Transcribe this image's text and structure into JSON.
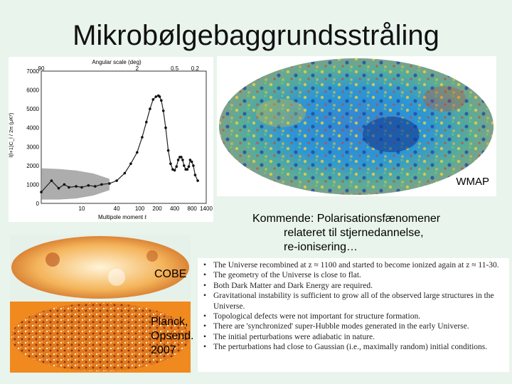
{
  "slide": {
    "title": "Mikrobølgebaggrundsstråling",
    "wmap_label": "WMAP",
    "upcoming_line1": "Kommende: Polarisationsfænomener",
    "upcoming_line2": "relateret til stjernedannelse,",
    "upcoming_line3": "re-ionisering…",
    "cobe_label": "COBE",
    "planck_line1": "Planck,",
    "planck_line2": "Opsend.",
    "planck_line3": "2007",
    "conclusions": [
      "The Universe recombined at z ≈ 1100 and started to become ionized again at z ≈ 11-30.",
      "The geometry of the Universe is close to flat.",
      "Both Dark Matter and Dark Energy are required.",
      "Gravitational instability is sufficient to grow all of the observed large structures in the Universe.",
      "Topological defects were not important for structure formation.",
      "There are 'synchronized' super-Hubble modes generated in the early Universe.",
      "The initial perturbations were adiabatic in nature.",
      "The perturbations had close to Gaussian (i.e., maximally random) initial conditions."
    ]
  },
  "chart_data": {
    "type": "scatter",
    "title": "Angular scale (deg)",
    "xlabel": "Multipole moment ℓ",
    "ylabel": "l(l+1)C_l / 2π (μK²)",
    "top_ticks": [
      "90",
      "2",
      "0.5",
      "0.2"
    ],
    "xticks": [
      "10",
      "40",
      "100",
      "200",
      "400",
      "800",
      "1400"
    ],
    "yticks": [
      0,
      1000,
      2000,
      3000,
      4000,
      5000,
      6000,
      7000
    ],
    "ylim": [
      0,
      7000
    ],
    "x": [
      2,
      3,
      4,
      5,
      6,
      8,
      10,
      13,
      17,
      22,
      30,
      40,
      55,
      70,
      90,
      110,
      130,
      150,
      170,
      190,
      210,
      220,
      235,
      255,
      280,
      310,
      340,
      370,
      400,
      430,
      460,
      490,
      520,
      550,
      580,
      620,
      660,
      700,
      740,
      790,
      840,
      900,
      1000
    ],
    "y": [
      600,
      1200,
      800,
      1000,
      850,
      900,
      850,
      950,
      900,
      1000,
      1050,
      1200,
      1600,
      2100,
      2700,
      3500,
      4300,
      5000,
      5500,
      5650,
      5700,
      5650,
      5450,
      4900,
      4000,
      2800,
      2100,
      1800,
      1750,
      1950,
      2300,
      2450,
      2450,
      2300,
      2000,
      1800,
      1800,
      1950,
      2300,
      2200,
      2000,
      1500,
      1200
    ],
    "grid": false
  }
}
